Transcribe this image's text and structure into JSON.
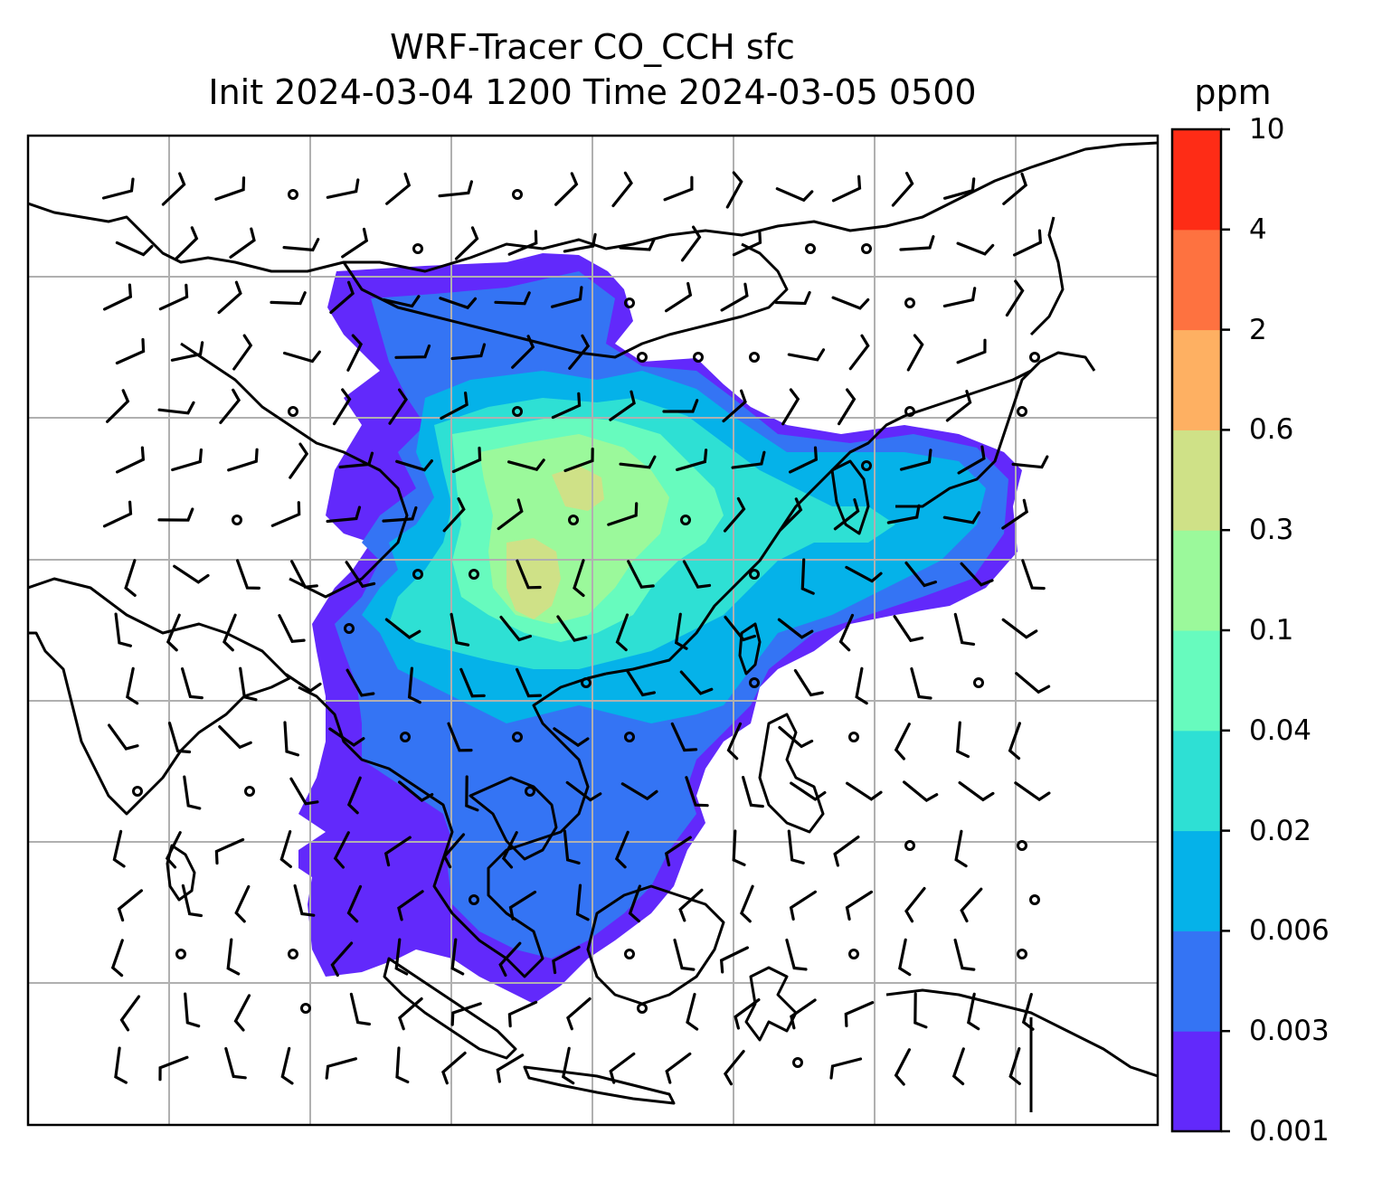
{
  "title": {
    "line1": "WRF-Tracer CO_CCH sfc",
    "line2": "Init 2024-03-04 1200 Time 2024-03-05 0500"
  },
  "colorbar": {
    "unit": "ppm",
    "levels": [
      "0.001",
      "0.003",
      "0.006",
      "0.02",
      "0.04",
      "0.1",
      "0.3",
      "0.6",
      "2",
      "4",
      "10"
    ],
    "colors": [
      "#6229fb",
      "#3474f4",
      "#05b2e9",
      "#2ee0d4",
      "#67fbbe",
      "#9bf99b",
      "#cfe187",
      "#feb062",
      "#fe7240",
      "#fe2c16"
    ]
  },
  "map": {
    "variable": "CO_CCH",
    "level": "sfc",
    "overlay": "wind barbs",
    "gridlines": true,
    "coastline_color": "#000000",
    "gridline_color": "#b0b0b0"
  }
}
